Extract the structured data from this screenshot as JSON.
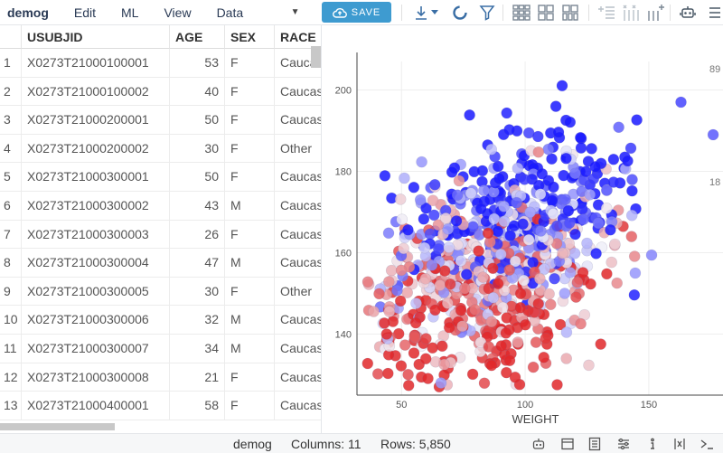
{
  "menu": {
    "title": "demog",
    "edit": "Edit",
    "ml": "ML",
    "view": "View",
    "data": "Data"
  },
  "toolbar": {
    "save_label": "SAVE"
  },
  "grid": {
    "columns": [
      "USUBJID",
      "AGE",
      "SEX",
      "RACE"
    ],
    "rows": [
      {
        "n": "1",
        "id": "X0273T21000100001",
        "age": "53",
        "sex": "F",
        "race": "Cauca"
      },
      {
        "n": "2",
        "id": "X0273T21000100002",
        "age": "40",
        "sex": "F",
        "race": "Caucas"
      },
      {
        "n": "3",
        "id": "X0273T21000200001",
        "age": "50",
        "sex": "F",
        "race": "Caucas"
      },
      {
        "n": "4",
        "id": "X0273T21000200002",
        "age": "30",
        "sex": "F",
        "race": "Other"
      },
      {
        "n": "5",
        "id": "X0273T21000300001",
        "age": "50",
        "sex": "F",
        "race": "Caucas"
      },
      {
        "n": "6",
        "id": "X0273T21000300002",
        "age": "43",
        "sex": "M",
        "race": "Caucas"
      },
      {
        "n": "7",
        "id": "X0273T21000300003",
        "age": "26",
        "sex": "F",
        "race": "Caucas"
      },
      {
        "n": "8",
        "id": "X0273T21000300004",
        "age": "47",
        "sex": "M",
        "race": "Caucas"
      },
      {
        "n": "9",
        "id": "X0273T21000300005",
        "age": "30",
        "sex": "F",
        "race": "Other"
      },
      {
        "n": "10",
        "id": "X0273T21000300006",
        "age": "32",
        "sex": "M",
        "race": "Caucas"
      },
      {
        "n": "11",
        "id": "X0273T21000300007",
        "age": "34",
        "sex": "M",
        "race": "Caucas"
      },
      {
        "n": "12",
        "id": "X0273T21000300008",
        "age": "21",
        "F": "",
        "sex": "F",
        "race": "Caucas"
      },
      {
        "n": "13",
        "id": "X0273T21000400001",
        "age": "58",
        "sex": "F",
        "race": "Caucas"
      }
    ]
  },
  "chart_data": {
    "type": "scatter",
    "xlabel": "WEIGHT",
    "ylabel": "",
    "xlim": [
      32,
      180
    ],
    "ylim": [
      125,
      207
    ],
    "x_ticks": [
      50,
      100,
      150
    ],
    "y_ticks": [
      140,
      160,
      180,
      200
    ],
    "color_scale_labels": [
      "89",
      "18"
    ],
    "colors": {
      "high": "#1a1aff",
      "mid": "#f0f0f8",
      "low": "#e0282a"
    },
    "point_count_note": "dense cloud of ~1000 points; representative sample drawn",
    "points_seed": 7
  },
  "status": {
    "table": "demog",
    "columns_label": "Columns: 11",
    "rows_label": "Rows: 5,850"
  }
}
